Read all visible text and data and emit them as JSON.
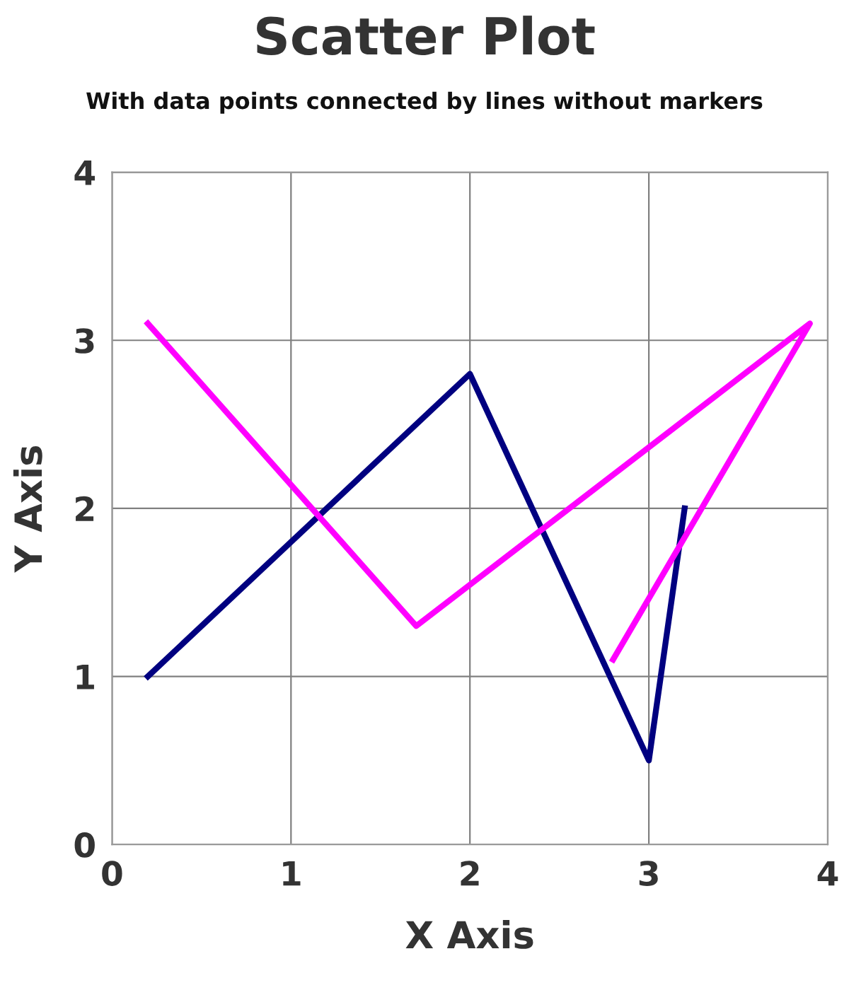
{
  "chart_data": {
    "type": "line",
    "title": "Scatter Plot",
    "subtitle": "With data points connected by lines without markers",
    "xlabel": "X Axis",
    "ylabel": "Y Axis",
    "series": [
      {
        "color": "#000080",
        "x": [
          0.2,
          2.0,
          3.0,
          3.2
        ],
        "values": [
          1.0,
          2.8,
          0.5,
          2.0
        ]
      },
      {
        "color": "#ff00ff",
        "x": [
          0.2,
          1.7,
          3.9,
          2.8
        ],
        "values": [
          3.1,
          1.3,
          3.1,
          1.1
        ]
      }
    ],
    "xlim": [
      0,
      4
    ],
    "ylim": [
      0,
      4
    ],
    "xticks": [
      0,
      1,
      2,
      3,
      4
    ],
    "yticks": [
      0,
      1,
      2,
      3,
      4
    ],
    "grid": true,
    "marker": "none",
    "line_style": "solid",
    "legend": false
  }
}
